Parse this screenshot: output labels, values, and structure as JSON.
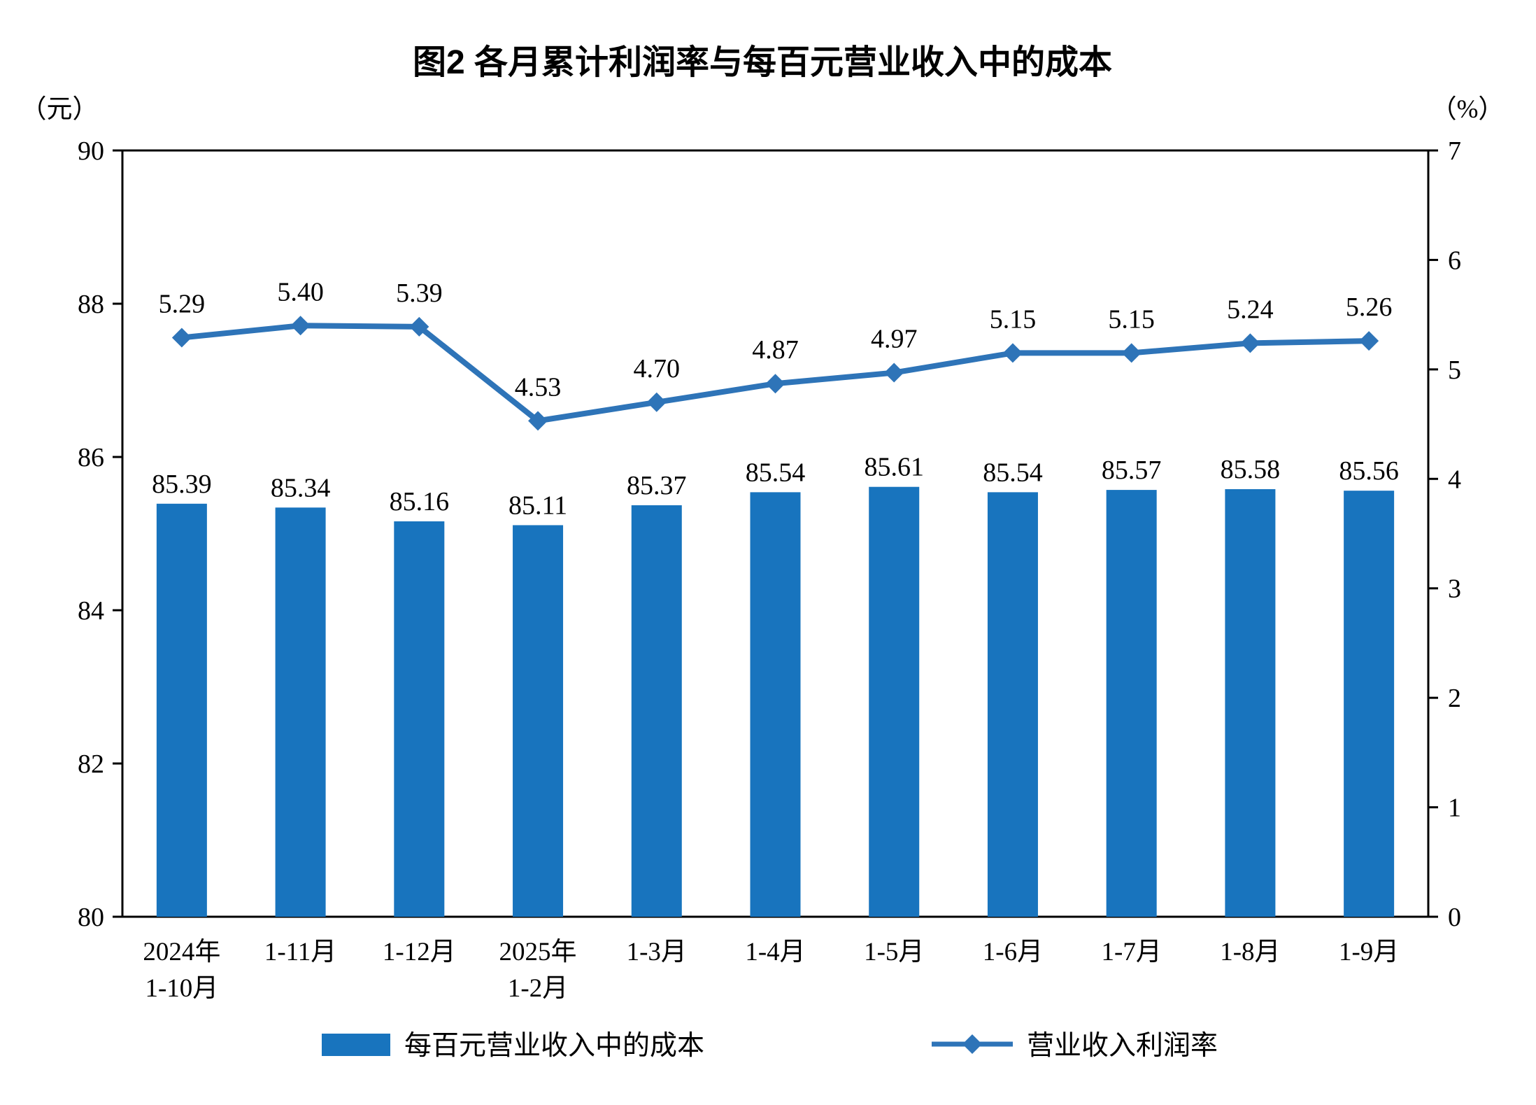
{
  "title": "图2 各月累计利润率与每百元营业收入中的成本",
  "left_axis_unit": "（元）",
  "right_axis_unit": "（%）",
  "legend": {
    "bars": "每百元营业收入中的成本",
    "line": "营业收入利润率"
  },
  "colors": {
    "bar": "#1874BE",
    "line": "#2E74B8",
    "axis": "#000000",
    "background": "#FFFFFF"
  },
  "chart_data": {
    "type": "bar",
    "combo": "bar+line",
    "categories": [
      [
        "2024年",
        "1-10月"
      ],
      [
        "1-11月"
      ],
      [
        "1-12月"
      ],
      [
        "2025年",
        "1-2月"
      ],
      [
        "1-3月"
      ],
      [
        "1-4月"
      ],
      [
        "1-5月"
      ],
      [
        "1-6月"
      ],
      [
        "1-7月"
      ],
      [
        "1-8月"
      ],
      [
        "1-9月"
      ]
    ],
    "series": [
      {
        "name": "每百元营业收入中的成本",
        "type": "bar",
        "axis": "left",
        "values": [
          85.39,
          85.34,
          85.16,
          85.11,
          85.37,
          85.54,
          85.61,
          85.54,
          85.57,
          85.58,
          85.56
        ]
      },
      {
        "name": "营业收入利润率",
        "type": "line",
        "axis": "right",
        "values": [
          5.29,
          5.4,
          5.39,
          4.53,
          4.7,
          4.87,
          4.97,
          5.15,
          5.15,
          5.24,
          5.26
        ]
      }
    ],
    "left_axis": {
      "label": "（元）",
      "min": 80,
      "max": 90,
      "ticks": [
        80,
        82,
        84,
        86,
        88,
        90
      ]
    },
    "right_axis": {
      "label": "（%）",
      "min": 0,
      "max": 7,
      "ticks": [
        0,
        1,
        2,
        3,
        4,
        5,
        6,
        7
      ]
    },
    "grid": false,
    "legend_position": "bottom",
    "value_label_decimals": 2
  }
}
